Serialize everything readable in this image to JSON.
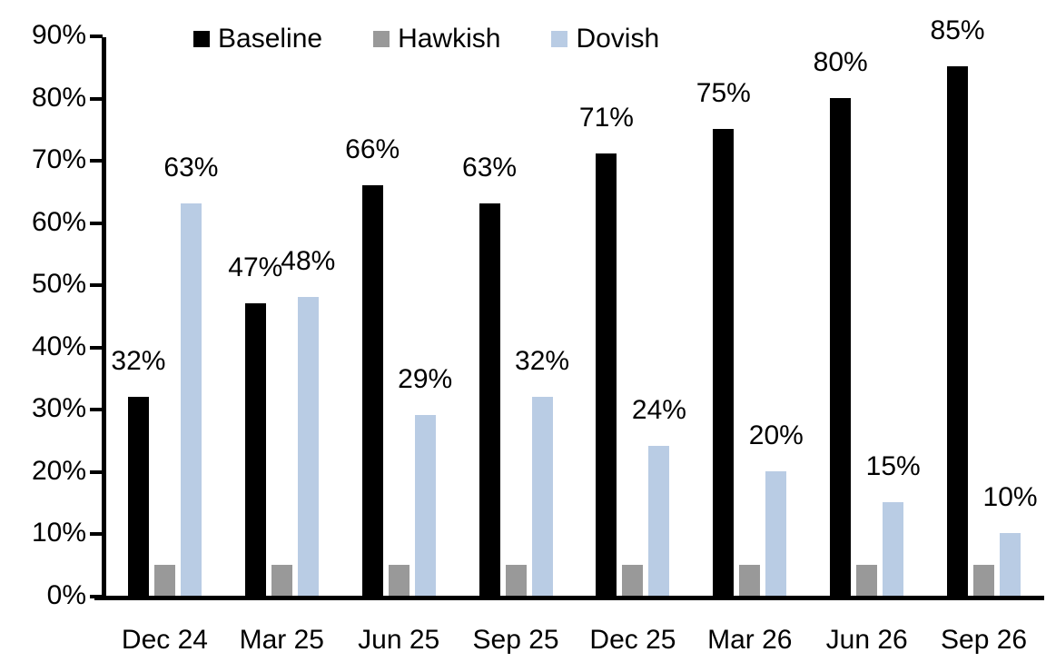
{
  "chart_data": {
    "type": "bar",
    "title": "",
    "categories": [
      "Dec 24",
      "Mar 25",
      "Jun 25",
      "Sep 25",
      "Dec 25",
      "Mar 26",
      "Jun 26",
      "Sep 26"
    ],
    "series": [
      {
        "name": "Baseline",
        "color": "#000000",
        "values": [
          32,
          47,
          66,
          63,
          71,
          75,
          80,
          85
        ],
        "data_labels": [
          "32%",
          "47%",
          "66%",
          "63%",
          "71%",
          "75%",
          "80%",
          "85%"
        ]
      },
      {
        "name": "Hawkish",
        "color": "#999999",
        "values": [
          5,
          5,
          5,
          5,
          5,
          5,
          5,
          5
        ],
        "data_labels": [
          "",
          "",
          "",
          "",
          "",
          "",
          "",
          ""
        ]
      },
      {
        "name": "Dovish",
        "color": "#b9cce4",
        "values": [
          63,
          48,
          29,
          32,
          24,
          20,
          15,
          10
        ],
        "data_labels": [
          "63%",
          "48%",
          "29%",
          "32%",
          "24%",
          "20%",
          "15%",
          "10%"
        ]
      }
    ],
    "ylim": [
      0,
      90
    ],
    "ytick_step": 10,
    "ytick_labels": [
      "0%",
      "10%",
      "20%",
      "30%",
      "40%",
      "50%",
      "60%",
      "70%",
      "80%",
      "90%"
    ],
    "legend": {
      "position": "top",
      "entries": [
        "Baseline",
        "Hawkish",
        "Dovish"
      ]
    },
    "grid": false,
    "axis_color": "#000000",
    "text_color": "#000000"
  }
}
